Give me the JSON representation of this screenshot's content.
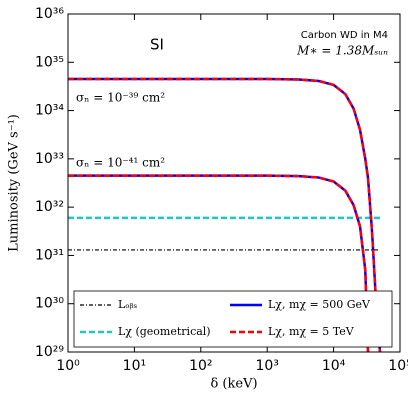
{
  "chart_data": {
    "type": "line",
    "title": "SI",
    "annotations": [
      "Carbon WD in M4",
      "M∗ = 1.38Mₛᵤₙ",
      "σₙ = 10⁻³⁹ cm²",
      "σₙ = 10⁻⁴¹ cm²"
    ],
    "x_label": "δ (keV)",
    "y_label": "Luminosity (GeV s⁻¹)",
    "log_x": true,
    "log_y": true,
    "xlim": [
      1,
      100000
    ],
    "ylim": [
      1e+29,
      1e+36
    ],
    "xticks": [
      {
        "value": 1,
        "label": "10⁰"
      },
      {
        "value": 10,
        "label": "10¹"
      },
      {
        "value": 100,
        "label": "10²"
      },
      {
        "value": 1000,
        "label": "10³"
      },
      {
        "value": 10000,
        "label": "10⁴"
      },
      {
        "value": 100000,
        "label": "10⁵"
      }
    ],
    "yticks": [
      {
        "value": 1e+29,
        "label": "10²⁹"
      },
      {
        "value": 1e+30,
        "label": "10³⁰"
      },
      {
        "value": 1e+31,
        "label": "10³¹"
      },
      {
        "value": 1e+32,
        "label": "10³²"
      },
      {
        "value": 1e+33,
        "label": "10³³"
      },
      {
        "value": 1e+34,
        "label": "10³⁴"
      },
      {
        "value": 1e+35,
        "label": "10³⁵"
      },
      {
        "value": 1e+36,
        "label": "10³⁶"
      }
    ],
    "x": [
      1,
      10,
      100,
      1000,
      3000,
      6000,
      10000,
      15000,
      20000,
      25000,
      30000,
      33000,
      38000,
      45000,
      50000
    ],
    "legend_position": "lower",
    "series": [
      {
        "name": "Lₒᵦₛ",
        "color": "#000000",
        "dash": "dashdot",
        "values": [
          1.3e+31,
          1.3e+31,
          1.3e+31,
          1.3e+31,
          1.3e+31,
          1.3e+31,
          1.3e+31,
          1.3e+31,
          1.3e+31,
          1.3e+31,
          1.3e+31,
          1.3e+31,
          1.3e+31,
          1.3e+31,
          1.3e+31
        ]
      },
      {
        "name": "Lχ (geometrical)",
        "color": "#1ec8c8",
        "dash": "dashed",
        "values": [
          6e+31,
          6e+31,
          6e+31,
          6e+31,
          6e+31,
          6e+31,
          6e+31,
          6e+31,
          6e+31,
          6e+31,
          6e+31,
          6e+31,
          6e+31,
          6e+31,
          6e+31
        ]
      },
      {
        "name": "Lχ, mχ = 500 GeV",
        "color": "#0000ff",
        "dash": "solid",
        "values": [
          4.5e+34,
          4.5e+34,
          4.5e+34,
          4.5e+34,
          4.4e+34,
          4.1e+34,
          3.4e+34,
          2.2e+34,
          1.1e+34,
          4e+33,
          1e+33,
          4e+32,
          3e+31,
          5e+29,
          1e+29
        ]
      },
      {
        "name": "Lχ, mχ = 5 TeV",
        "color": "#ff0000",
        "dash": "dashed",
        "values": [
          4.5e+34,
          4.5e+34,
          4.5e+34,
          4.5e+34,
          4.4e+34,
          4.1e+34,
          3.4e+34,
          2.2e+34,
          1.1e+34,
          4e+33,
          1e+33,
          4e+32,
          3e+31,
          5e+29,
          1e+29
        ]
      },
      {
        "color": "#0000ff",
        "dash": "solid",
        "values": [
          4.5e+32,
          4.5e+32,
          4.5e+32,
          4.5e+32,
          4.4e+32,
          4.1e+32,
          3.4e+32,
          2.2e+32,
          1.1e+32,
          4e+31,
          5e+30,
          1e+29,
          null,
          null,
          null
        ]
      },
      {
        "color": "#ff0000",
        "dash": "dashed",
        "values": [
          4.5e+32,
          4.5e+32,
          4.5e+32,
          4.5e+32,
          4.4e+32,
          4.1e+32,
          3.4e+32,
          2.2e+32,
          1.1e+32,
          4e+31,
          5e+30,
          1e+29,
          null,
          null,
          null
        ]
      }
    ]
  }
}
